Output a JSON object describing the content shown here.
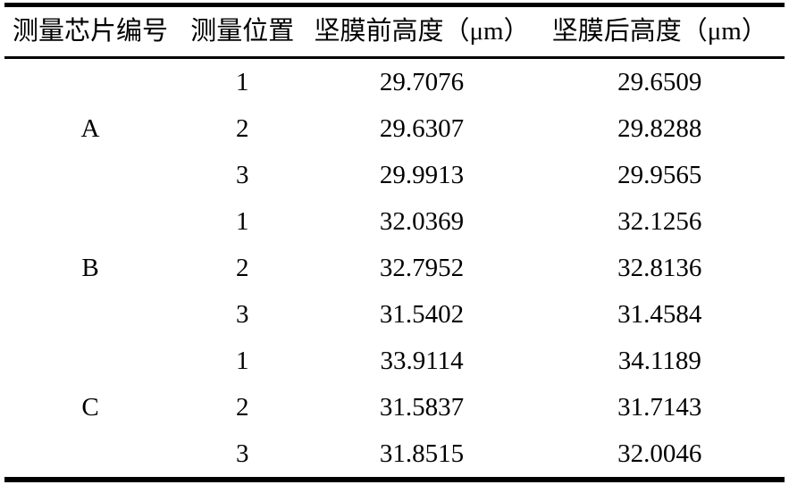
{
  "chart_data": {
    "type": "table",
    "headers": [
      "测量芯片编号",
      "测量位置",
      "坚膜前高度（μm）",
      "坚膜后高度（μm）"
    ],
    "groups": [
      {
        "chip": "A",
        "rows": [
          [
            "1",
            "29.7076",
            "29.6509"
          ],
          [
            "2",
            "29.6307",
            "29.8288"
          ],
          [
            "3",
            "29.9913",
            "29.9565"
          ]
        ]
      },
      {
        "chip": "B",
        "rows": [
          [
            "1",
            "32.0369",
            "32.1256"
          ],
          [
            "2",
            "32.7952",
            "32.8136"
          ],
          [
            "3",
            "31.5402",
            "31.4584"
          ]
        ]
      },
      {
        "chip": "C",
        "rows": [
          [
            "1",
            "33.9114",
            "34.1189"
          ],
          [
            "2",
            "31.5837",
            "31.7143"
          ],
          [
            "3",
            "31.8515",
            "32.0046"
          ]
        ]
      }
    ],
    "layout": {
      "rule_style": "three-line",
      "colors": {
        "text": "#000000",
        "background": "#ffffff",
        "rule": "#000000"
      }
    }
  }
}
